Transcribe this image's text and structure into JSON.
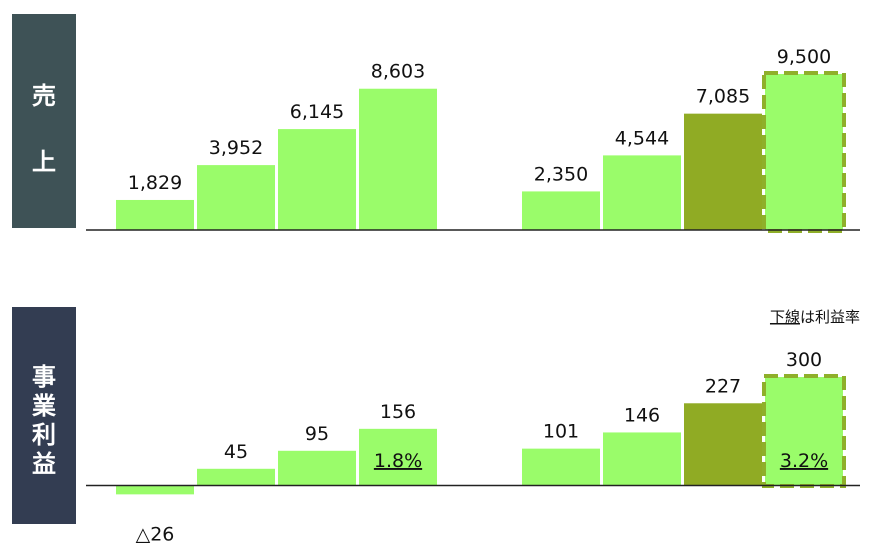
{
  "colors": {
    "bar": "#9AFC6A",
    "highlight_bar": "#90AB24",
    "forecast_outline": "#8FAF2A",
    "sales_label_bg": "#3E5256",
    "profit_label_bg": "#333D52",
    "axis": "#222222"
  },
  "note": {
    "underlined": "下線",
    "rest": "は利益率"
  },
  "chart_data": [
    {
      "type": "bar",
      "label": "売上",
      "label_chars": [
        "売",
        "上"
      ],
      "values": [
        1829,
        3952,
        6145,
        8603,
        2350,
        4544,
        7085,
        9500
      ],
      "value_labels": [
        "1,829",
        "3,952",
        "6,145",
        "8,603",
        "2,350",
        "4,544",
        "7,085",
        "9,500"
      ],
      "groups": [
        [
          0,
          1,
          2,
          3
        ],
        [
          4,
          5,
          6,
          7
        ]
      ],
      "highlight_index": 6,
      "forecast_index": 7,
      "ylim": [
        0,
        9500
      ]
    },
    {
      "type": "bar",
      "label": "事業利益",
      "label_chars": [
        "事",
        "業",
        "利",
        "益"
      ],
      "values": [
        -26,
        45,
        95,
        156,
        101,
        146,
        227,
        300
      ],
      "value_labels": [
        "△26",
        "45",
        "95",
        "156",
        "101",
        "146",
        "227",
        "300"
      ],
      "margins": [
        null,
        null,
        null,
        "1.8%",
        null,
        null,
        null,
        "3.2%"
      ],
      "groups": [
        [
          0,
          1,
          2,
          3
        ],
        [
          4,
          5,
          6,
          7
        ]
      ],
      "highlight_index": 6,
      "forecast_index": 7,
      "ylim": [
        -26,
        300
      ]
    }
  ]
}
